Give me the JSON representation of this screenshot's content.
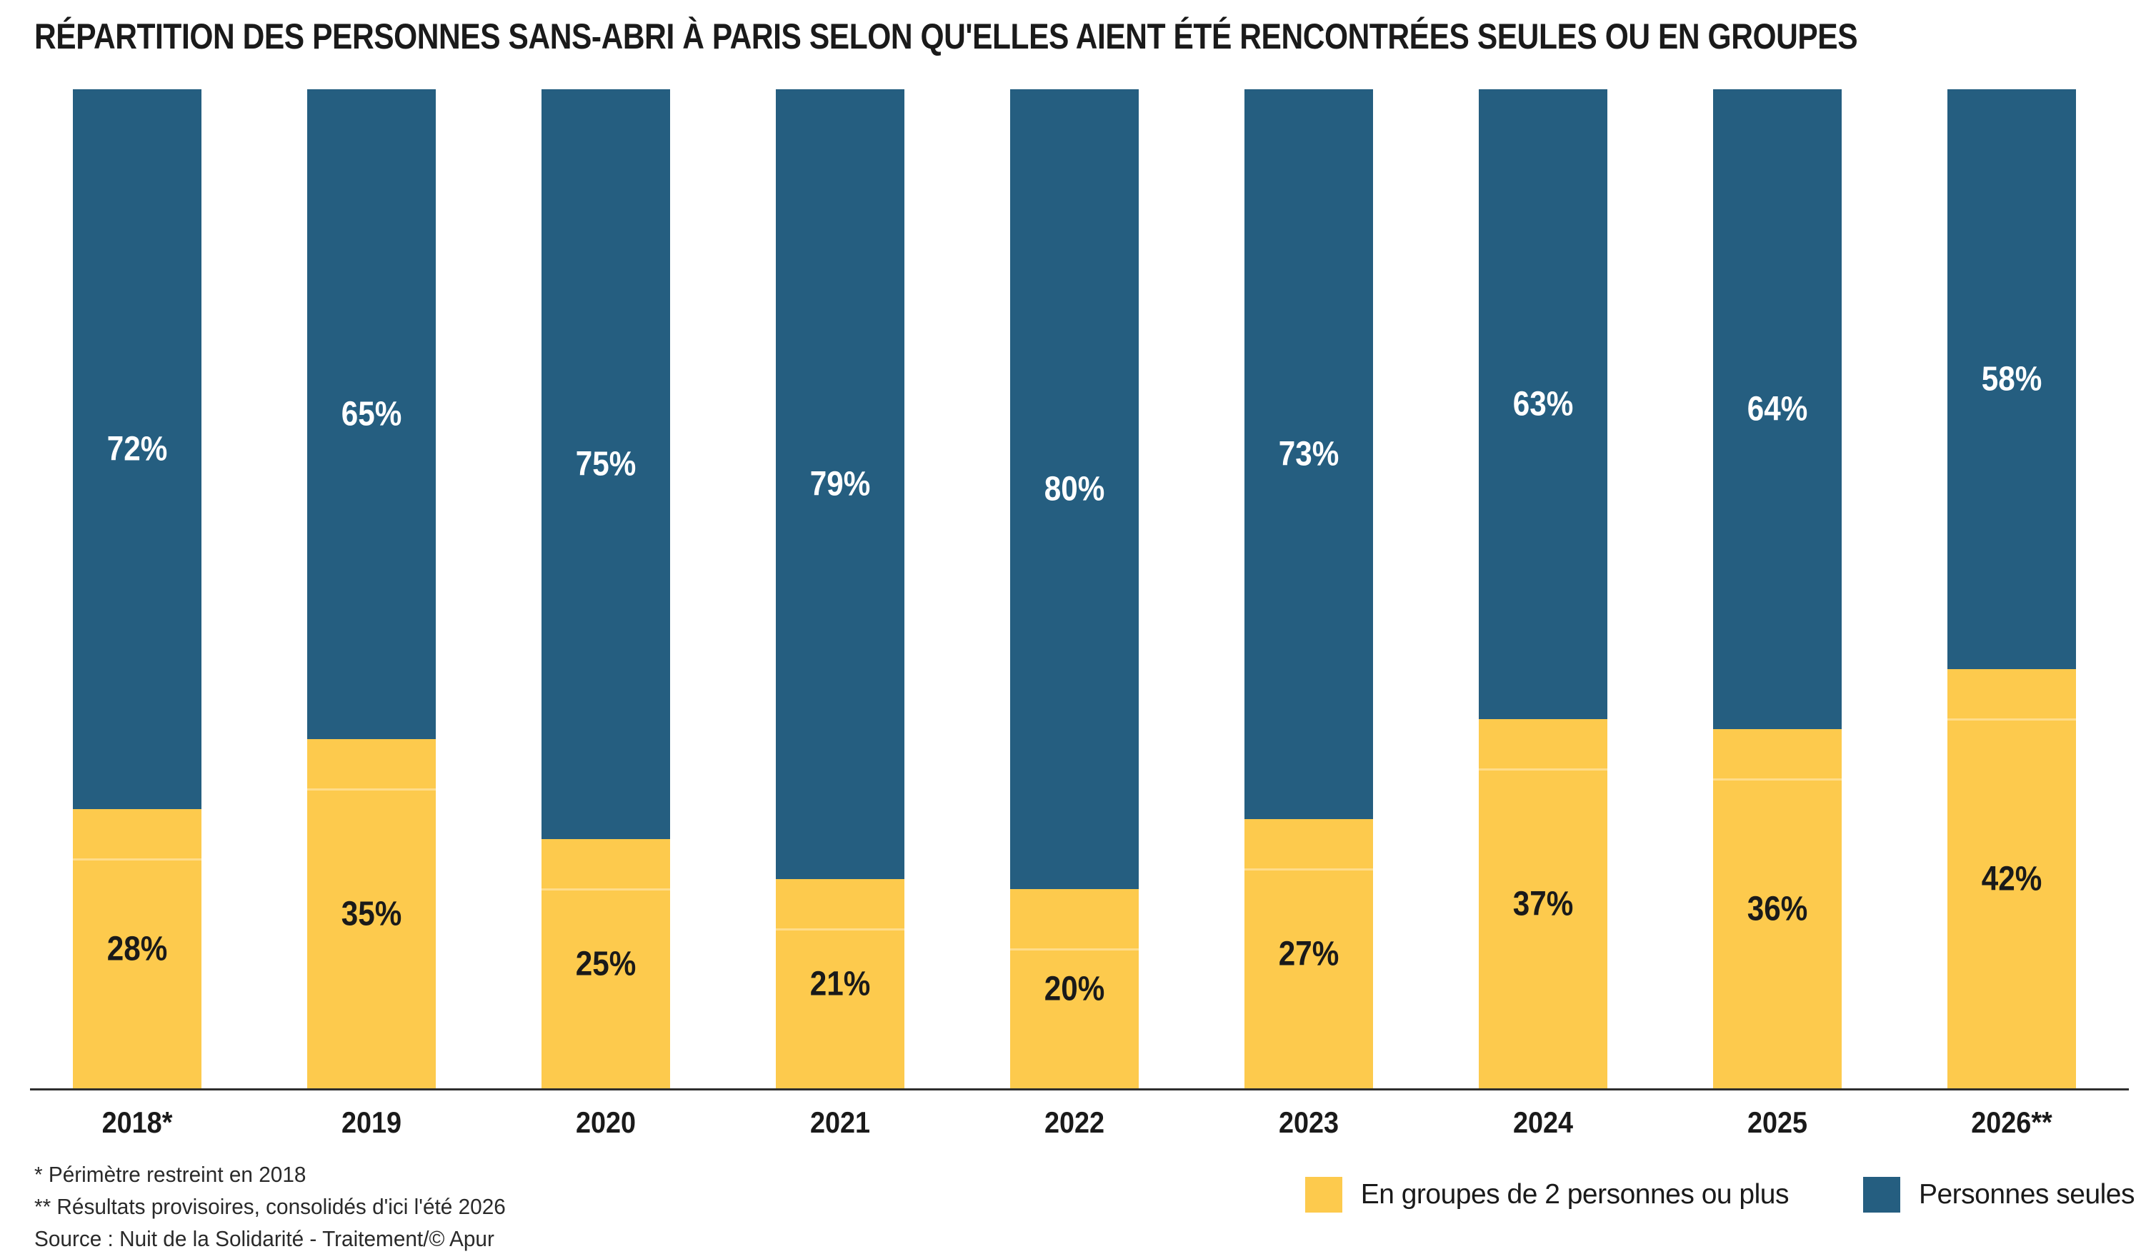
{
  "chart_data": {
    "type": "bar",
    "variant": "stacked-100",
    "title": "RÉPARTITION DES PERSONNES SANS-ABRI À PARIS SELON QU'ELLES AIENT ÉTÉ RENCONTRÉES SEULES OU EN GROUPES",
    "categories": [
      "2018*",
      "2019",
      "2020",
      "2021",
      "2022",
      "2023",
      "2024",
      "2025",
      "2026**"
    ],
    "series": [
      {
        "name": "En groupes de 2 personnes ou plus",
        "color": "#fdca4d",
        "label_color": "#1a1a1a",
        "values": [
          28,
          35,
          25,
          21,
          20,
          27,
          37,
          36,
          42
        ]
      },
      {
        "name": "Personnes seules",
        "color": "#255e80",
        "label_color": "#ffffff",
        "values": [
          72,
          65,
          75,
          79,
          80,
          73,
          63,
          64,
          58
        ]
      }
    ],
    "value_suffix": "%",
    "faint_divider_pcts": [
      23,
      30,
      20,
      16,
      14,
      22,
      32,
      31,
      37
    ],
    "ylim": [
      0,
      100
    ],
    "grid": false,
    "y_axis_shown": false,
    "legend_position": "bottom-right"
  },
  "footnotes": [
    "* Périmètre restreint en 2018",
    "** Résultats provisoires, consolidés d'ici l'été 2026",
    "Source : Nuit de la Solidarité - Traitement/© Apur"
  ],
  "colors": {
    "background": "#ffffff",
    "axis_line": "#2e2e2e",
    "title_text": "#1a1a1a",
    "footnote_text": "#2a2a2a"
  }
}
